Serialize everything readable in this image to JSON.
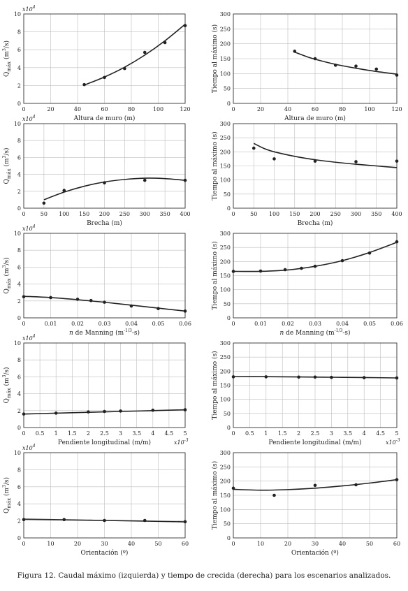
{
  "caption": "Figura 12. Caudal máximo (izquierda) y tiempo de crecida (derecha) para los escenarios analizados.",
  "chart_data": [
    {
      "type": "scatter",
      "panel": "left-1",
      "xlabel": "Altura de muro (m)",
      "ylabel": "Qmáx (m3/s)",
      "multiplier": "x10^4",
      "xlim": [
        0,
        120
      ],
      "ylim": [
        0,
        10
      ],
      "xticks": [
        0,
        20,
        40,
        60,
        80,
        100,
        120
      ],
      "yticks": [
        0,
        2,
        4,
        6,
        8,
        10
      ],
      "xticklabels": [
        "0",
        "20",
        "40",
        "60",
        "80",
        "100",
        "120"
      ],
      "yticklabels": [
        "0",
        "2",
        "4",
        "6",
        "8",
        "10"
      ],
      "points": {
        "x": [
          45,
          60,
          75,
          90,
          105,
          120
        ],
        "y": [
          2.1,
          2.9,
          3.9,
          5.7,
          6.8,
          8.7
        ]
      },
      "fit": {
        "x": [
          45,
          60,
          75,
          90,
          105,
          120
        ],
        "y": [
          2.05,
          2.95,
          4.05,
          5.4,
          7.0,
          8.85
        ]
      }
    },
    {
      "type": "scatter",
      "panel": "right-1",
      "xlabel": "Altura de muro (m)",
      "ylabel": "Tiempo al máximo (s)",
      "xlim": [
        0,
        120
      ],
      "ylim": [
        0,
        300
      ],
      "xticks": [
        0,
        20,
        40,
        60,
        80,
        100,
        120
      ],
      "yticks": [
        0,
        50,
        100,
        150,
        200,
        250,
        300
      ],
      "xticklabels": [
        "0",
        "20",
        "40",
        "60",
        "80",
        "100",
        "120"
      ],
      "yticklabels": [
        "0",
        "50",
        "100",
        "150",
        "200",
        "250",
        "300"
      ],
      "points": {
        "x": [
          45,
          60,
          75,
          90,
          105,
          120
        ],
        "y": [
          175,
          150,
          128,
          125,
          115,
          95
        ]
      },
      "fit": {
        "x": [
          45,
          55,
          65,
          75,
          90,
          105,
          120
        ],
        "y": [
          172,
          155,
          142,
          131,
          118,
          107,
          98
        ]
      }
    },
    {
      "type": "scatter",
      "panel": "left-2",
      "xlabel": "Brecha (m)",
      "ylabel": "Qmáx (m3/s)",
      "multiplier": "x10^4",
      "xlim": [
        0,
        400
      ],
      "ylim": [
        0,
        10
      ],
      "xticks": [
        0,
        50,
        100,
        150,
        200,
        250,
        300,
        350,
        400
      ],
      "yticks": [
        0,
        2,
        4,
        6,
        8,
        10
      ],
      "xticklabels": [
        "0",
        "50",
        "100",
        "150",
        "200",
        "250",
        "300",
        "350",
        "400"
      ],
      "yticklabels": [
        "0",
        "2",
        "4",
        "6",
        "8",
        "10"
      ],
      "points": {
        "x": [
          50,
          100,
          200,
          300,
          400
        ],
        "y": [
          0.6,
          2.1,
          3.0,
          3.3,
          3.3
        ]
      },
      "fit": {
        "x": [
          50,
          100,
          150,
          200,
          250,
          300,
          350,
          400
        ],
        "y": [
          1.0,
          1.9,
          2.6,
          3.1,
          3.4,
          3.55,
          3.5,
          3.3
        ]
      }
    },
    {
      "type": "scatter",
      "panel": "right-2",
      "xlabel": "Brecha (m)",
      "ylabel": "Tiempo al máximo (s)",
      "xlim": [
        0,
        400
      ],
      "ylim": [
        0,
        300
      ],
      "xticks": [
        0,
        50,
        100,
        150,
        200,
        250,
        300,
        350,
        400
      ],
      "yticks": [
        0,
        50,
        100,
        150,
        200,
        250,
        300
      ],
      "xticklabels": [
        "0",
        "50",
        "100",
        "150",
        "200",
        "250",
        "300",
        "350",
        "400"
      ],
      "yticklabels": [
        "0",
        "50",
        "100",
        "150",
        "200",
        "250",
        "300"
      ],
      "points": {
        "x": [
          50,
          100,
          200,
          300,
          400
        ],
        "y": [
          213,
          175,
          167,
          165,
          167
        ]
      },
      "fit": {
        "x": [
          50,
          75,
          100,
          150,
          200,
          250,
          300,
          350,
          400
        ],
        "y": [
          230,
          212,
          200,
          184,
          172,
          163,
          156,
          150,
          144
        ]
      }
    },
    {
      "type": "scatter",
      "panel": "left-3",
      "xlabel": "n de Manning (m-1/3-s)",
      "ylabel": "Qmáx (m3/s)",
      "multiplier": "x10^4",
      "xlim": [
        0,
        0.06
      ],
      "ylim": [
        0,
        10
      ],
      "xticks": [
        0,
        0.01,
        0.02,
        0.03,
        0.04,
        0.05,
        0.06
      ],
      "yticks": [
        0,
        2,
        4,
        6,
        8,
        10
      ],
      "xticklabels": [
        "0",
        "0.01",
        "0.02",
        "0.03",
        "0.04",
        "0.05",
        "0.06"
      ],
      "yticklabels": [
        "0",
        "2",
        "4",
        "6",
        "8",
        "10"
      ],
      "points": {
        "x": [
          0,
          0.01,
          0.02,
          0.025,
          0.03,
          0.04,
          0.05,
          0.06
        ],
        "y": [
          2.5,
          2.4,
          2.2,
          2.05,
          1.85,
          1.4,
          1.1,
          0.8
        ]
      },
      "fit": {
        "x": [
          0,
          0.01,
          0.02,
          0.03,
          0.04,
          0.05,
          0.06
        ],
        "y": [
          2.55,
          2.4,
          2.15,
          1.85,
          1.5,
          1.15,
          0.8
        ]
      }
    },
    {
      "type": "scatter",
      "panel": "right-3",
      "xlabel": "n de Manning (m-1/3-s)",
      "ylabel": "Tiempo al máximo (s)",
      "xlim": [
        0,
        0.06
      ],
      "ylim": [
        0,
        300
      ],
      "xticks": [
        0,
        0.01,
        0.02,
        0.03,
        0.04,
        0.05,
        0.06
      ],
      "yticks": [
        0,
        50,
        100,
        150,
        200,
        250,
        300
      ],
      "xticklabels": [
        "0",
        "0.01",
        "0.02",
        "0.03",
        "0.04",
        "0.05",
        "0.06"
      ],
      "yticklabels": [
        "0",
        "50",
        "100",
        "150",
        "200",
        "250",
        "300"
      ],
      "points": {
        "x": [
          0,
          0.01,
          0.019,
          0.025,
          0.03,
          0.04,
          0.05,
          0.06
        ],
        "y": [
          165,
          166,
          171,
          176,
          183,
          203,
          230,
          270
        ]
      },
      "fit": {
        "x": [
          0,
          0.01,
          0.02,
          0.03,
          0.04,
          0.05,
          0.06
        ],
        "y": [
          165,
          165,
          170,
          183,
          203,
          232,
          268
        ]
      }
    },
    {
      "type": "scatter",
      "panel": "left-4",
      "xlabel": "Pendiente longitudinal (m/m)",
      "ylabel": "Qmáx (m3/s)",
      "multiplier": "x10^4",
      "xmultiplier": "x10^-3",
      "xlim": [
        0,
        5
      ],
      "ylim": [
        0,
        10
      ],
      "xticks": [
        0,
        0.5,
        1,
        1.5,
        2,
        2.5,
        3,
        3.5,
        4,
        4.5,
        5
      ],
      "yticks": [
        0,
        2,
        4,
        6,
        8,
        10
      ],
      "xticklabels": [
        "0",
        "0.5",
        "1",
        "1.5",
        "2",
        "2.5",
        "3",
        "3.5",
        "4",
        "4.5",
        "5"
      ],
      "yticklabels": [
        "0",
        "2",
        "4",
        "6",
        "8",
        "10"
      ],
      "points": {
        "x": [
          0,
          1,
          2,
          2.5,
          3,
          4,
          5
        ],
        "y": [
          1.6,
          1.7,
          1.85,
          1.9,
          1.95,
          2.05,
          2.1
        ]
      },
      "fit": {
        "x": [
          0,
          1,
          2,
          3,
          4,
          5
        ],
        "y": [
          1.6,
          1.7,
          1.8,
          1.9,
          2.0,
          2.1
        ]
      }
    },
    {
      "type": "scatter",
      "panel": "right-4",
      "xlabel": "Pendiente longitudinal (m/m)",
      "ylabel": "Tiempo al máximo (s)",
      "xmultiplier": "x10^-3",
      "xlim": [
        0,
        5
      ],
      "ylim": [
        0,
        300
      ],
      "xticks": [
        0,
        0.5,
        1,
        1.5,
        2,
        2.5,
        3,
        3.5,
        4,
        4.5,
        5
      ],
      "yticks": [
        0,
        50,
        100,
        150,
        200,
        250,
        300
      ],
      "xticklabels": [
        "0",
        "0.5",
        "1",
        "1.5",
        "2",
        "2.5",
        "3",
        "3.5",
        "4",
        "4.5",
        "5"
      ],
      "yticklabels": [
        "0",
        "50",
        "100",
        "150",
        "200",
        "250",
        "300"
      ],
      "points": {
        "x": [
          0,
          1,
          2,
          2.5,
          3,
          4,
          5
        ],
        "y": [
          180,
          180,
          179,
          179,
          178,
          177,
          176
        ]
      },
      "fit": {
        "x": [
          0,
          1,
          2,
          3,
          4,
          5
        ],
        "y": [
          181,
          180.5,
          179.5,
          178.5,
          177.5,
          176
        ]
      }
    },
    {
      "type": "scatter",
      "panel": "left-5",
      "xlabel": "Orientación (º)",
      "ylabel": "Qmáx (m3/s)",
      "multiplier": "x10^4",
      "xlim": [
        0,
        60
      ],
      "ylim": [
        0,
        10
      ],
      "xticks": [
        0,
        10,
        20,
        30,
        40,
        50,
        60
      ],
      "yticks": [
        0,
        2,
        4,
        6,
        8,
        10
      ],
      "xticklabels": [
        "0",
        "10",
        "20",
        "30",
        "40",
        "50",
        "60"
      ],
      "yticklabels": [
        "0",
        "2",
        "4",
        "6",
        "8",
        "10"
      ],
      "points": {
        "x": [
          0,
          15,
          30,
          45,
          60
        ],
        "y": [
          2.15,
          2.15,
          2.05,
          2.05,
          1.9
        ]
      },
      "fit": {
        "x": [
          0,
          15,
          30,
          45,
          60
        ],
        "y": [
          2.2,
          2.13,
          2.05,
          1.97,
          1.88
        ]
      }
    },
    {
      "type": "scatter",
      "panel": "right-5",
      "xlabel": "Orientación (º)",
      "ylabel": "Tiempo al máximo (s)",
      "xlim": [
        0,
        60
      ],
      "ylim": [
        0,
        300
      ],
      "xticks": [
        0,
        10,
        20,
        30,
        40,
        50,
        60
      ],
      "yticks": [
        0,
        50,
        100,
        150,
        200,
        250,
        300
      ],
      "xticklabels": [
        "0",
        "10",
        "20",
        "30",
        "40",
        "50",
        "60"
      ],
      "yticklabels": [
        "0",
        "50",
        "100",
        "150",
        "200",
        "250",
        "300"
      ],
      "points": {
        "x": [
          0,
          15,
          30,
          45,
          60
        ],
        "y": [
          175,
          150,
          185,
          187,
          205
        ]
      },
      "fit": {
        "x": [
          0,
          10,
          20,
          30,
          40,
          50,
          60
        ],
        "y": [
          171,
          168,
          170,
          175,
          183,
          193,
          205
        ]
      }
    }
  ]
}
